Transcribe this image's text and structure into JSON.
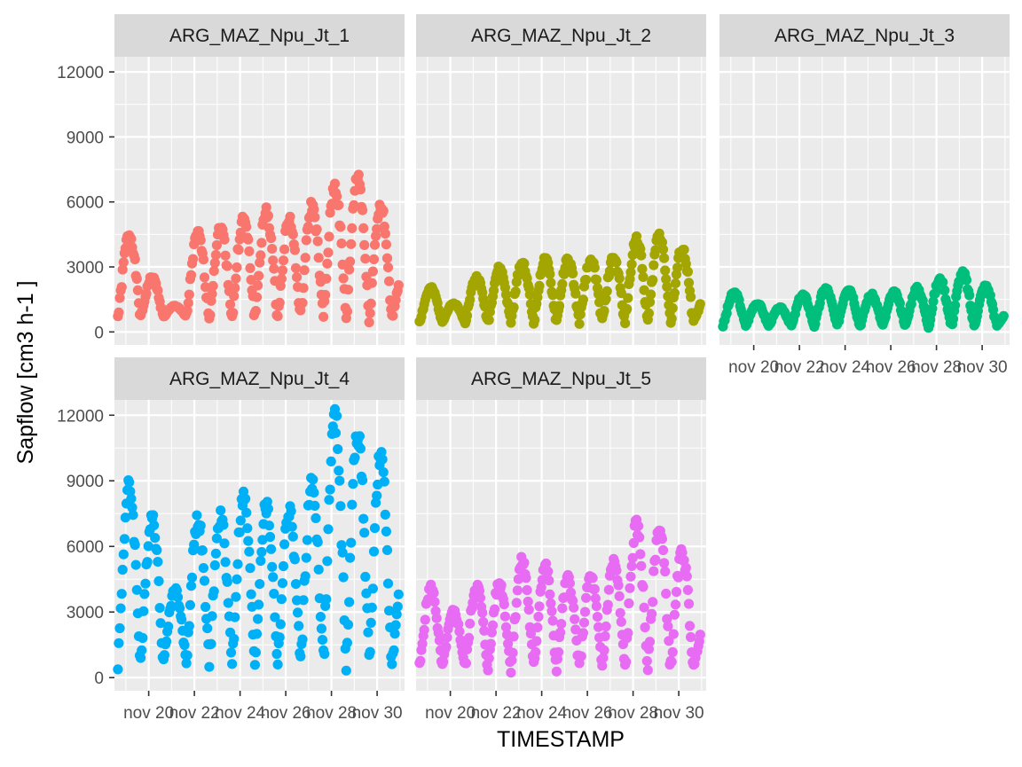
{
  "chart_data": {
    "type": "scatter",
    "layout": "facet-wrap, 3 columns",
    "xlabel": "TIMESTAMP",
    "ylabel": "Sapflow [cm3 h-1 ]",
    "xlim": [
      18.5,
      31.2
    ],
    "ylim": [
      -600,
      12700
    ],
    "x_ticks": [
      20,
      22,
      24,
      26,
      28,
      30
    ],
    "x_tick_labels": [
      "nov 20",
      "nov 22",
      "nov 24",
      "nov 26",
      "nov 28",
      "nov 30"
    ],
    "y_ticks": [
      0,
      3000,
      6000,
      9000,
      12000
    ],
    "y_tick_labels": [
      "0",
      "3000",
      "6000",
      "9000",
      "12000"
    ],
    "grid": true,
    "legend": "none",
    "panel_background": "#ebebeb",
    "strip_background": "#d9d9d9",
    "panels": [
      {
        "name": "ARG_MAZ_Npu_Jt_1",
        "color": "#F8766D",
        "base": 700,
        "peaks": [
          4500,
          2500,
          1200,
          4500,
          4800,
          5200,
          5500,
          5200,
          5800,
          6700,
          7200,
          5800,
          2700
        ],
        "seed": 1
      },
      {
        "name": "ARG_MAZ_Npu_Jt_2",
        "color": "#A3A500",
        "base": 500,
        "peaks": [
          2000,
          1300,
          2500,
          2900,
          3200,
          3300,
          3300,
          3300,
          3400,
          4300,
          4500,
          3800,
          1500
        ],
        "seed": 2
      },
      {
        "name": "ARG_MAZ_Npu_Jt_3",
        "color": "#00BF7D",
        "base": 300,
        "peaks": [
          1800,
          1300,
          1100,
          1700,
          2000,
          2000,
          1700,
          1800,
          2000,
          2400,
          2700,
          2100,
          900
        ],
        "seed": 3
      },
      {
        "name": "ARG_MAZ_Npu_Jt_4",
        "color": "#00B0F6",
        "base": 800,
        "peaks": [
          8700,
          7400,
          4000,
          7200,
          7300,
          8200,
          7800,
          7600,
          8800,
          11800,
          11300,
          10000,
          4600
        ],
        "seed": 4
      },
      {
        "name": "ARG_MAZ_Npu_Jt_5",
        "color": "#E76BF3",
        "base": 500,
        "peaks": [
          4100,
          3000,
          4200,
          4300,
          5300,
          5100,
          4500,
          4600,
          5300,
          6900,
          6800,
          5700,
          2500
        ],
        "seed": 5
      }
    ]
  }
}
